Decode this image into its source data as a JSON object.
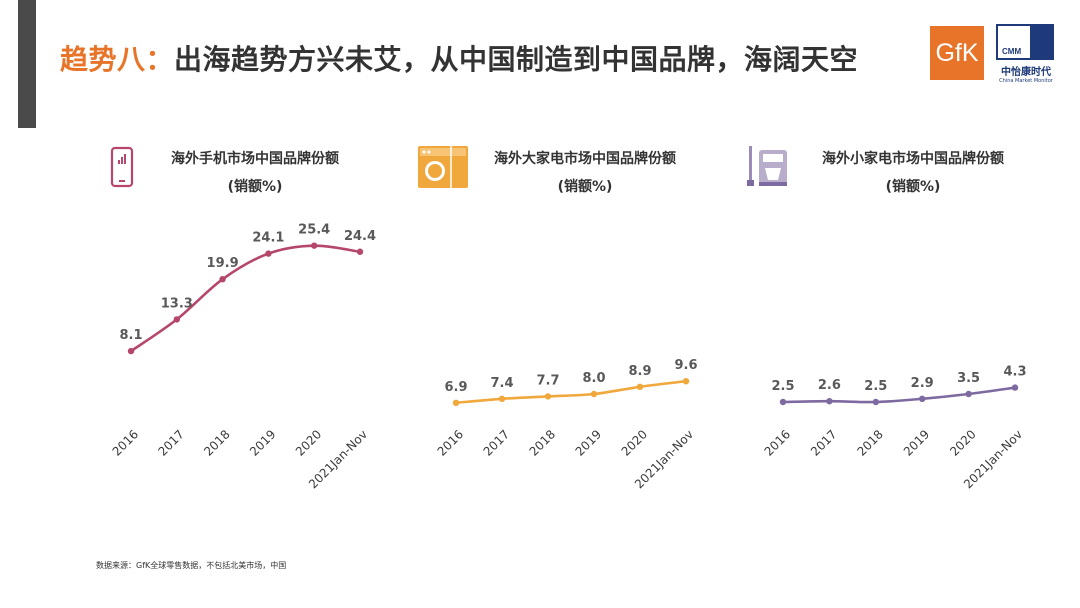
{
  "header": {
    "title_prefix": "趋势八：",
    "title_text": "出海趋势方兴未艾，从中国制造到中国品牌，海阔天空",
    "gfk_logo": "GfK",
    "cmm_logo": {
      "abbr": "CMM",
      "name_cn": "中怡康时代",
      "name_en": "China Market Monitor"
    }
  },
  "colors": {
    "accent": "#e8742a",
    "phone": "#b5476b",
    "large_appliance": "#f0a83c",
    "small_appliance": "#7d6aa0",
    "dark_bar": "#4a4a4a"
  },
  "panels": [
    {
      "title_line1": "海外手机市场中国品牌份额",
      "title_line2": "(销额%)",
      "icon": "phone-icon"
    },
    {
      "title_line1": "海外大家电市场中国品牌份额",
      "title_line2": "(销额%)",
      "icon": "washing-machine-icon"
    },
    {
      "title_line1": "海外小家电市场中国品牌份额",
      "title_line2": "(销额%)",
      "icon": "mixer-icon"
    }
  ],
  "chart_data": [
    {
      "type": "line",
      "title": "海外手机市场中国品牌份额 (销额%)",
      "categories": [
        "2016",
        "2017",
        "2018",
        "2019",
        "2020",
        "2021Jan-Nov"
      ],
      "series": [
        {
          "values": [
            8.1,
            13.3,
            19.9,
            24.1,
            25.4,
            24.4
          ]
        }
      ],
      "color": "#b5476b",
      "smooth": true,
      "ylim": [
        5,
        26
      ],
      "grid": false
    },
    {
      "type": "line",
      "title": "海外大家电市场中国品牌份额 (销额%)",
      "categories": [
        "2016",
        "2017",
        "2018",
        "2019",
        "2020",
        "2021Jan-Nov"
      ],
      "series": [
        {
          "values": [
            6.9,
            7.4,
            7.7,
            8.0,
            8.9,
            9.6
          ]
        }
      ],
      "color": "#f0a83c",
      "smooth": true,
      "ylim": [
        0,
        40
      ],
      "grid": false
    },
    {
      "type": "line",
      "title": "海外小家电市场中国品牌份额 (销额%)",
      "categories": [
        "2016",
        "2017",
        "2018",
        "2019",
        "2020",
        "2021Jan-Nov"
      ],
      "series": [
        {
          "values": [
            2.5,
            2.6,
            2.5,
            2.9,
            3.5,
            4.3
          ]
        }
      ],
      "color": "#7d6aa0",
      "smooth": true,
      "ylim": [
        0,
        20
      ],
      "grid": false
    }
  ],
  "footer": {
    "source": "数据来源：GfK全球零售数据，不包括北美市场，中国"
  }
}
